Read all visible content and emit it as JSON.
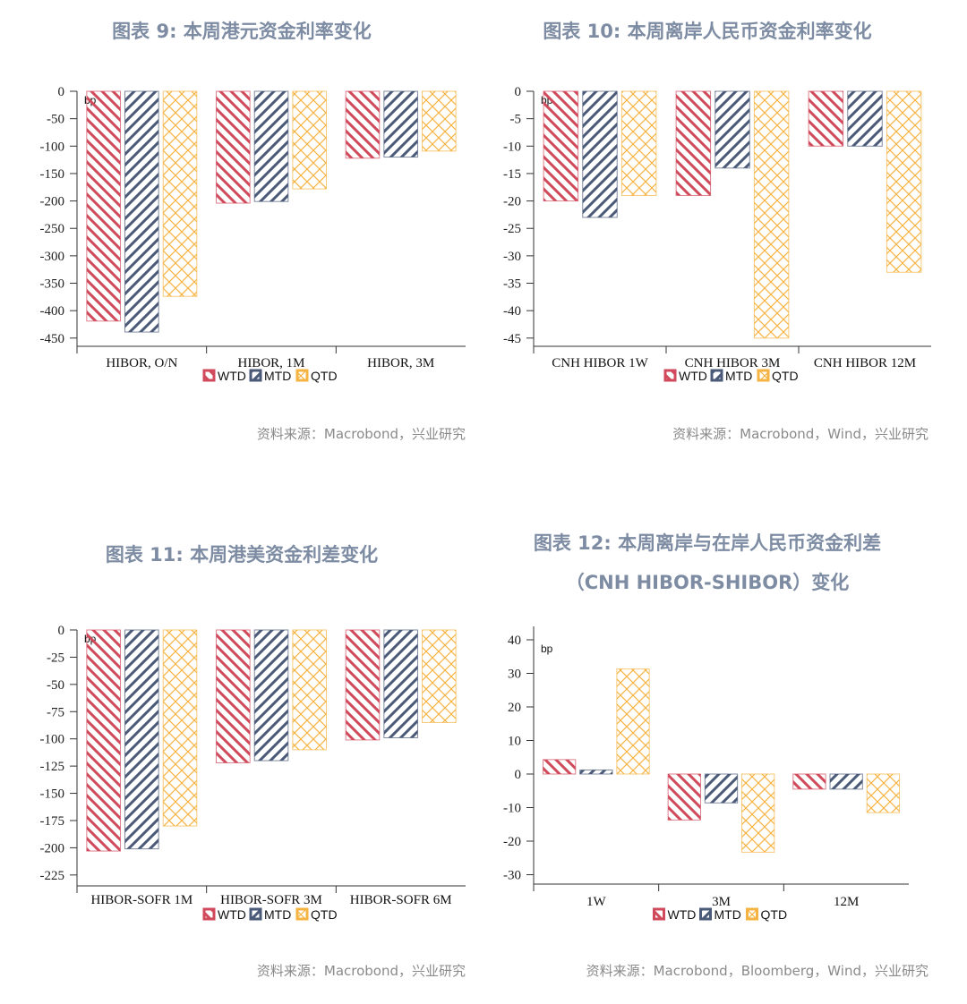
{
  "colors": {
    "WTD": "#d04a5c",
    "MTD": "#4a5a78",
    "QTD": "#f5b342",
    "title": "#7d8ca3"
  },
  "chart_data": [
    {
      "type": "bar",
      "title": "图表 9:  本周港元资金利率变化",
      "source": "资料来源：Macrobond，兴业研究",
      "unit": "bp",
      "categories": [
        "HIBOR, O/N",
        "HIBOR, 1M",
        "HIBOR, 3M"
      ],
      "series": [
        {
          "name": "WTD",
          "values": [
            -419,
            -204,
            -122
          ]
        },
        {
          "name": "MTD",
          "values": [
            -439,
            -201,
            -120
          ]
        },
        {
          "name": "QTD",
          "values": [
            -374,
            -178,
            -109
          ]
        }
      ],
      "yticks": [
        0,
        -50,
        -100,
        -150,
        -200,
        -250,
        -300,
        -350,
        -400,
        -450
      ],
      "ylim": [
        -465,
        0
      ],
      "legend": "bottom"
    },
    {
      "type": "bar",
      "title": "图表 10: 本周离岸人民币资金利率变化",
      "source": "资料来源：Macrobond，Wind，兴业研究",
      "unit": "bp",
      "categories": [
        "CNH HIBOR 1W",
        "CNH HIBOR 3M",
        "CNH HIBOR 12M"
      ],
      "series": [
        {
          "name": "WTD",
          "values": [
            -20,
            -19,
            -10
          ]
        },
        {
          "name": "MTD",
          "values": [
            -23,
            -14,
            -10
          ]
        },
        {
          "name": "QTD",
          "values": [
            -19,
            -45,
            -33
          ]
        }
      ],
      "yticks": [
        0,
        -5,
        -10,
        -15,
        -20,
        -25,
        -30,
        -35,
        -40,
        -45
      ],
      "ylim": [
        -46.5,
        0
      ],
      "legend": "bottom"
    },
    {
      "type": "bar",
      "title": "图表 11: 本周港美资金利差变化",
      "source": "资料来源：Macrobond，兴业研究",
      "unit": "bp",
      "categories": [
        "HIBOR-SOFR 1M",
        "HIBOR-SOFR 3M",
        "HIBOR-SOFR 6M"
      ],
      "series": [
        {
          "name": "WTD",
          "values": [
            -203,
            -122,
            -101
          ]
        },
        {
          "name": "MTD",
          "values": [
            -201,
            -120,
            -99
          ]
        },
        {
          "name": "QTD",
          "values": [
            -180,
            -110,
            -85
          ]
        }
      ],
      "yticks": [
        0,
        -25,
        -50,
        -75,
        -100,
        -125,
        -150,
        -175,
        -200,
        -225
      ],
      "ylim": [
        -235,
        0
      ],
      "legend": "bottom"
    },
    {
      "type": "bar",
      "title": "图表 12: 本周离岸与在岸人民币资金利差",
      "title2": "（CNH HIBOR-SHIBOR）变化",
      "source": "资料来源：Macrobond，Bloomberg，Wind，兴业研究",
      "unit": "bp",
      "categories": [
        "1W",
        "3M",
        "12M"
      ],
      "series": [
        {
          "name": "WTD",
          "values": [
            4.3,
            -13.7,
            -4.5
          ]
        },
        {
          "name": "MTD",
          "values": [
            1.2,
            -8.6,
            -4.5
          ]
        },
        {
          "name": "QTD",
          "values": [
            31.3,
            -23.3,
            -11.5
          ]
        }
      ],
      "yticks": [
        40,
        30,
        20,
        10,
        0,
        -10,
        -20,
        -30
      ],
      "ylim": [
        -32.8,
        43
      ],
      "legend": "bottom"
    }
  ]
}
